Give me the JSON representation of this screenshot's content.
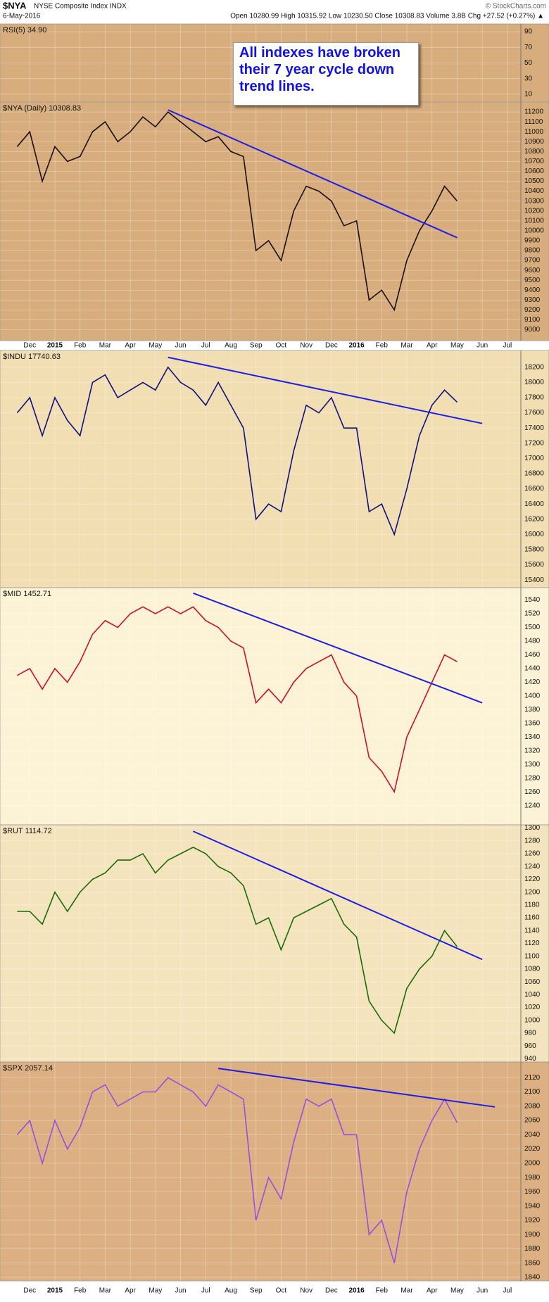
{
  "chart_data": {
    "type": "stacked-panels",
    "header": {
      "title": "$NYA",
      "subtitle": "NYSE Composite Index INDX",
      "date": "6-May-2016",
      "quote": "Open 10280.99 High 10315.92 Low 10230.50 Close 10308.83 Volume 3.8B Chg +27.52 (+0.27%) ▲",
      "credit": "© StockCharts.com"
    },
    "annotation": "All indexes have broken their 7 year cycle down trend lines.",
    "categories": [
      null,
      "Dec",
      null,
      "2015",
      null,
      "Feb",
      null,
      "Mar",
      null,
      "Apr",
      null,
      "May",
      null,
      "Jun",
      null,
      "Jul",
      null,
      "Aug",
      null,
      "Sep",
      null,
      "Oct",
      null,
      "Nov",
      null,
      "Dec",
      null,
      "2016",
      null,
      "Feb",
      null,
      "Mar",
      null,
      "Apr",
      null,
      "May",
      null,
      "Jun",
      null,
      "Jul",
      null
    ],
    "grid": true,
    "panels": [
      {
        "type": "line",
        "label": "RSI(5) 34.90",
        "background": "#d8ad7d",
        "ylim": [
          0,
          100
        ],
        "yticks": [
          10,
          30,
          50,
          70,
          90
        ],
        "series": []
      },
      {
        "type": "line",
        "background": "#d8ad7d",
        "ylim": [
          8890,
          11300
        ],
        "yticks": [
          9000,
          9100,
          9200,
          9300,
          9400,
          9500,
          9600,
          9700,
          9800,
          9900,
          10000,
          10100,
          10200,
          10300,
          10400,
          10500,
          10600,
          10700,
          10800,
          10900,
          11000,
          11100,
          11200
        ],
        "series": [
          {
            "name": "$NYA (Daily) 10308.83",
            "color": "#1c1010",
            "values": [
              10850,
              11000,
              10500,
              10850,
              10700,
              10750,
              11000,
              11100,
              10900,
              11000,
              11150,
              11050,
              11200,
              11100,
              11000,
              10900,
              10950,
              10800,
              10750,
              9800,
              9900,
              9700,
              10200,
              10450,
              10400,
              10300,
              10050,
              10100,
              9300,
              9400,
              9200,
              9700,
              10000,
              10200,
              10450,
              10300,
              null,
              null,
              null,
              null,
              null
            ]
          },
          {
            "type": "trendline",
            "color": "#1e1ee6",
            "values": [
              null,
              null,
              null,
              null,
              null,
              null,
              null,
              null,
              null,
              null,
              null,
              null,
              11220,
              null,
              null,
              null,
              null,
              null,
              null,
              null,
              null,
              null,
              null,
              null,
              null,
              null,
              null,
              null,
              null,
              null,
              null,
              null,
              null,
              null,
              null,
              9930,
              null,
              null,
              null,
              null,
              null
            ]
          }
        ]
      },
      {
        "type": "line",
        "background": "#f1deb2",
        "ylim": [
          15300,
          18420
        ],
        "yticks": [
          15400,
          15600,
          15800,
          16000,
          16200,
          16400,
          16600,
          16800,
          17000,
          17200,
          17400,
          17600,
          17800,
          18000,
          18200
        ],
        "series": [
          {
            "name": "$INDU 17740.63",
            "color": "#101080",
            "values": [
              17600,
              17800,
              17300,
              17800,
              17500,
              17300,
              18000,
              18100,
              17800,
              17900,
              18000,
              17900,
              18200,
              18000,
              17900,
              17700,
              18000,
              17700,
              17400,
              16200,
              16400,
              16300,
              17100,
              17700,
              17600,
              17800,
              17400,
              17400,
              16300,
              16400,
              16000,
              16600,
              17300,
              17700,
              17900,
              17740,
              null,
              null,
              null,
              null,
              null
            ]
          },
          {
            "type": "trendline",
            "color": "#1e1ee6",
            "values": [
              null,
              null,
              null,
              null,
              null,
              null,
              null,
              null,
              null,
              null,
              null,
              null,
              18330,
              null,
              null,
              null,
              null,
              null,
              null,
              null,
              null,
              null,
              null,
              null,
              null,
              null,
              null,
              null,
              null,
              null,
              null,
              null,
              null,
              null,
              null,
              null,
              null,
              17460,
              null,
              null,
              null
            ]
          }
        ]
      },
      {
        "type": "line",
        "background": "#fcf3d6",
        "ylim": [
          1212,
          1558
        ],
        "yticks": [
          1240,
          1260,
          1280,
          1300,
          1320,
          1340,
          1360,
          1380,
          1400,
          1420,
          1440,
          1460,
          1480,
          1500,
          1520,
          1540
        ],
        "series": [
          {
            "name": "$MID 1452.71",
            "color": "#d0102c",
            "values": [
              1430,
              1440,
              1410,
              1440,
              1420,
              1450,
              1490,
              1510,
              1500,
              1520,
              1530,
              1520,
              1530,
              1520,
              1530,
              1510,
              1500,
              1480,
              1470,
              1390,
              1410,
              1390,
              1420,
              1440,
              1450,
              1460,
              1420,
              1400,
              1310,
              1290,
              1260,
              1340,
              1380,
              1420,
              1460,
              1450,
              null,
              null,
              null,
              null,
              null
            ]
          },
          {
            "type": "trendline",
            "color": "#1e1ee6",
            "values": [
              null,
              null,
              null,
              null,
              null,
              null,
              null,
              null,
              null,
              null,
              null,
              null,
              null,
              null,
              1550,
              null,
              null,
              null,
              null,
              null,
              null,
              null,
              null,
              null,
              null,
              null,
              null,
              null,
              null,
              null,
              null,
              null,
              null,
              null,
              null,
              null,
              null,
              1390,
              null,
              null,
              null
            ]
          }
        ]
      },
      {
        "type": "line",
        "background": "#f4e4bd",
        "ylim": [
          935,
          1305
        ],
        "yticks": [
          940,
          960,
          980,
          1000,
          1020,
          1040,
          1060,
          1080,
          1100,
          1120,
          1140,
          1160,
          1180,
          1200,
          1220,
          1240,
          1260,
          1280,
          1300
        ],
        "series": [
          {
            "name": "$RUT 1114.72",
            "color": "#1a6b0a",
            "values": [
              1170,
              1170,
              1150,
              1200,
              1170,
              1200,
              1220,
              1230,
              1250,
              1250,
              1260,
              1230,
              1250,
              1260,
              1270,
              1260,
              1240,
              1230,
              1210,
              1150,
              1160,
              1110,
              1160,
              1170,
              1180,
              1190,
              1150,
              1130,
              1030,
              1000,
              980,
              1050,
              1080,
              1100,
              1140,
              1115,
              null,
              null,
              null,
              null,
              null
            ]
          },
          {
            "type": "trendline",
            "color": "#1e1ee6",
            "values": [
              null,
              null,
              null,
              null,
              null,
              null,
              null,
              null,
              null,
              null,
              null,
              null,
              null,
              null,
              1295,
              null,
              null,
              null,
              null,
              null,
              null,
              null,
              null,
              null,
              null,
              null,
              null,
              null,
              null,
              null,
              null,
              null,
              null,
              null,
              null,
              null,
              null,
              1095,
              null,
              null,
              null
            ]
          }
        ]
      },
      {
        "type": "line",
        "background": "#dcb082",
        "ylim": [
          1835,
          2142
        ],
        "yticks": [
          1840,
          1860,
          1880,
          1900,
          1920,
          1940,
          1960,
          1980,
          2000,
          2020,
          2040,
          2060,
          2080,
          2100,
          2120
        ],
        "series": [
          {
            "name": "$SPX 2057.14",
            "color": "#9a4ee0",
            "values": [
              2040,
              2060,
              2000,
              2060,
              2020,
              2050,
              2100,
              2110,
              2080,
              2090,
              2100,
              2100,
              2120,
              2110,
              2100,
              2080,
              2110,
              2100,
              2090,
              1920,
              1980,
              1950,
              2030,
              2090,
              2080,
              2090,
              2040,
              2040,
              1900,
              1920,
              1860,
              1960,
              2020,
              2060,
              2090,
              2057,
              null,
              null,
              null,
              null,
              null
            ]
          },
          {
            "type": "trendline",
            "color": "#1e1ee6",
            "values": [
              null,
              null,
              null,
              null,
              null,
              null,
              null,
              null,
              null,
              null,
              null,
              null,
              null,
              null,
              null,
              null,
              2133,
              null,
              null,
              null,
              null,
              null,
              null,
              null,
              null,
              null,
              null,
              null,
              null,
              null,
              null,
              null,
              null,
              null,
              null,
              null,
              null,
              null,
              2079,
              null,
              null
            ]
          }
        ]
      }
    ]
  }
}
